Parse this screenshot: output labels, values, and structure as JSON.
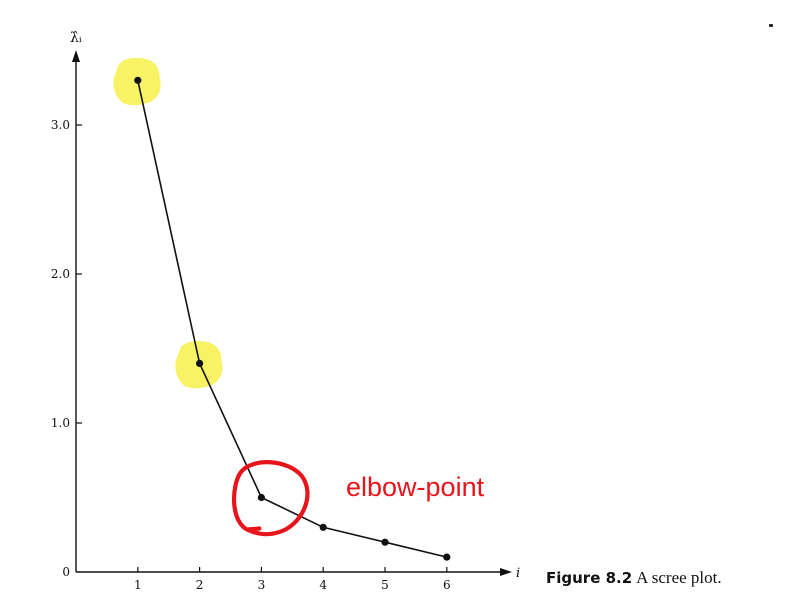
{
  "chart_data": {
    "type": "line",
    "x": [
      1,
      2,
      3,
      4,
      5,
      6
    ],
    "y": [
      3.3,
      1.4,
      0.5,
      0.3,
      0.2,
      0.1
    ],
    "xlabel": "i",
    "ylabel": "λ̂ᵢ",
    "xticks": [
      "1",
      "2",
      "3",
      "4",
      "5",
      "6"
    ],
    "yticks": [
      "0",
      "1.0",
      "2.0",
      "3.0"
    ],
    "xlim": [
      0,
      7
    ],
    "ylim": [
      0,
      3.5
    ],
    "grid": false,
    "highlighted_x": [
      1,
      2
    ],
    "circled_x": 3,
    "highlight_color": "#f5f03a",
    "circle_color": "#e8141c",
    "line_color": "#111111"
  },
  "caption": {
    "label": "Figure 8.2",
    "text": "A scree plot."
  },
  "annotation": {
    "text": "elbow-point",
    "color": "#e8141c"
  }
}
